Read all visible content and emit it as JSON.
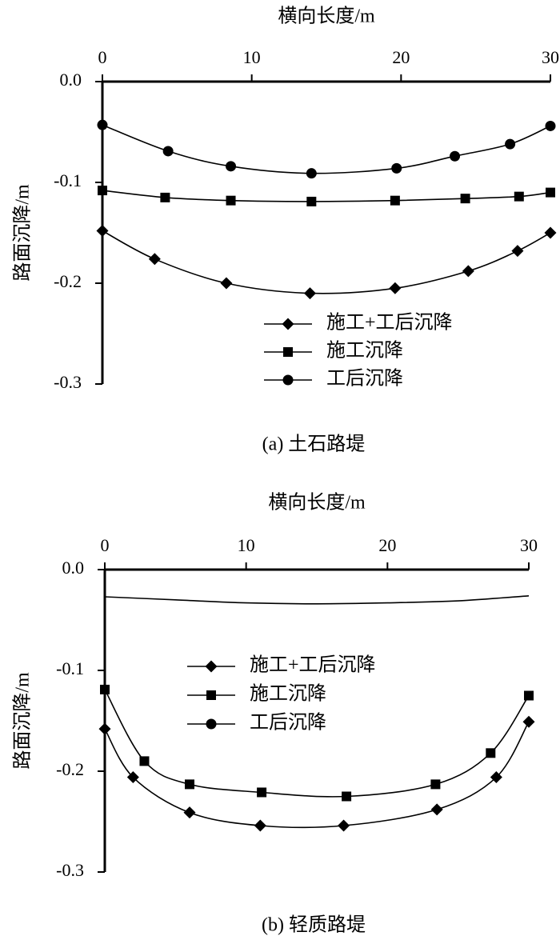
{
  "chart_data": [
    {
      "type": "line",
      "caption": "(a) 土石路堤",
      "xlabel": "横向长度/m",
      "ylabel": "路面沉降/m",
      "xlim": [
        0,
        30
      ],
      "ylim": [
        -0.3,
        0.0
      ],
      "x_ticks": [
        "0",
        "10",
        "20",
        "30"
      ],
      "y_ticks": [
        "0.0",
        "-0.1",
        "-0.2",
        "-0.3"
      ],
      "x_axis_position": "top",
      "legend_position": "bottom-right",
      "series": [
        {
          "name": "施工+工后沉降",
          "marker": "diamond",
          "x": [
            0,
            3.5,
            8.3,
            13.9,
            19.6,
            24.5,
            27.8,
            30
          ],
          "y": [
            -0.148,
            -0.176,
            -0.2,
            -0.21,
            -0.205,
            -0.188,
            -0.168,
            -0.15
          ]
        },
        {
          "name": "施工沉降",
          "marker": "square",
          "x": [
            0,
            4.2,
            8.6,
            14.0,
            19.6,
            24.3,
            27.9,
            30
          ],
          "y": [
            -0.108,
            -0.115,
            -0.118,
            -0.119,
            -0.118,
            -0.116,
            -0.114,
            -0.11
          ]
        },
        {
          "name": "工后沉降",
          "marker": "circle",
          "x": [
            0,
            4.4,
            8.6,
            14.0,
            19.7,
            23.6,
            27.3,
            30
          ],
          "y": [
            -0.043,
            -0.069,
            -0.084,
            -0.091,
            -0.086,
            -0.074,
            -0.062,
            -0.044
          ]
        }
      ]
    },
    {
      "type": "line",
      "caption": "(b) 轻质路堤",
      "xlabel": "横向长度/m",
      "ylabel": "路面沉降/m",
      "xlim": [
        0,
        30
      ],
      "ylim": [
        -0.3,
        0.0
      ],
      "x_ticks": [
        "0",
        "10",
        "20",
        "30"
      ],
      "y_ticks": [
        "0.0",
        "-0.1",
        "-0.2",
        "-0.3"
      ],
      "x_axis_position": "top",
      "legend_position": "top-left",
      "series": [
        {
          "name": "施工+工后沉降",
          "marker": "diamond",
          "x": [
            0,
            2.0,
            6.0,
            11.0,
            16.9,
            23.5,
            27.7,
            30
          ],
          "y": [
            -0.158,
            -0.206,
            -0.241,
            -0.254,
            -0.254,
            -0.238,
            -0.206,
            -0.151
          ]
        },
        {
          "name": "施工沉降",
          "marker": "square",
          "x": [
            0,
            2.8,
            6.0,
            11.1,
            17.1,
            23.4,
            27.3,
            30
          ],
          "y": [
            -0.119,
            -0.19,
            -0.213,
            -0.221,
            -0.225,
            -0.213,
            -0.182,
            -0.125
          ]
        },
        {
          "name": "工后沉降",
          "marker": "circle",
          "x": [
            0,
            5,
            10,
            15,
            20,
            25,
            30
          ],
          "y": [
            -0.027,
            -0.03,
            -0.033,
            -0.034,
            -0.033,
            -0.031,
            -0.026
          ]
        }
      ]
    }
  ]
}
